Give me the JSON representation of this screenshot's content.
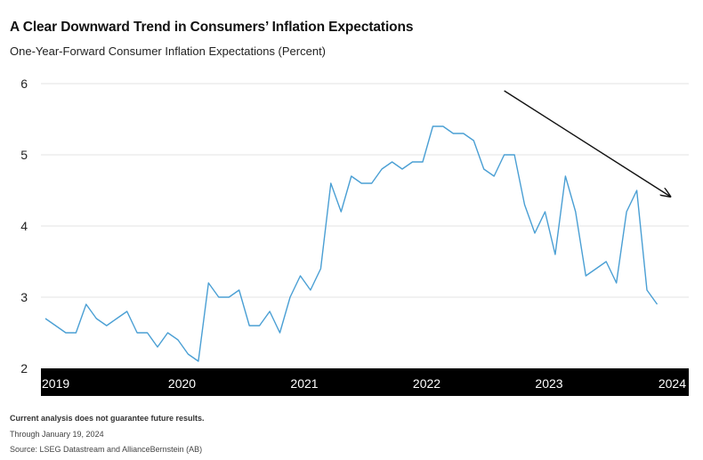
{
  "chart_data": {
    "type": "line",
    "title": "A Clear Downward Trend in Consumers’ Inflation Expectations",
    "subtitle": "One-Year-Forward Consumer Inflation Expectations (Percent)",
    "xlabel": "",
    "ylabel": "",
    "ylim": [
      2,
      6
    ],
    "yticks": [
      "2",
      "3",
      "4",
      "5",
      "6"
    ],
    "xticks": [
      "2019",
      "2020",
      "2021",
      "2022",
      "2023",
      "2024"
    ],
    "grid": true,
    "x": [
      "2019-01",
      "2019-02",
      "2019-03",
      "2019-04",
      "2019-05",
      "2019-06",
      "2019-07",
      "2019-08",
      "2019-09",
      "2019-10",
      "2019-11",
      "2019-12",
      "2020-01",
      "2020-02",
      "2020-03",
      "2020-04",
      "2020-05",
      "2020-06",
      "2020-07",
      "2020-08",
      "2020-09",
      "2020-10",
      "2020-11",
      "2020-12",
      "2021-01",
      "2021-02",
      "2021-03",
      "2021-04",
      "2021-05",
      "2021-06",
      "2021-07",
      "2021-08",
      "2021-09",
      "2021-10",
      "2021-11",
      "2021-12",
      "2022-01",
      "2022-02",
      "2022-03",
      "2022-04",
      "2022-05",
      "2022-06",
      "2022-07",
      "2022-08",
      "2022-09",
      "2022-10",
      "2022-11",
      "2022-12",
      "2023-01",
      "2023-02",
      "2023-03",
      "2023-04",
      "2023-05",
      "2023-06",
      "2023-07",
      "2023-08",
      "2023-09",
      "2023-10",
      "2023-11",
      "2023-12",
      "2024-01"
    ],
    "series": [
      {
        "values": [
          2.7,
          2.6,
          2.5,
          2.5,
          2.9,
          2.7,
          2.6,
          2.7,
          2.8,
          2.5,
          2.5,
          2.3,
          2.5,
          2.4,
          2.2,
          2.1,
          3.2,
          3.0,
          3.0,
          3.1,
          2.6,
          2.6,
          2.8,
          2.5,
          3.0,
          3.3,
          3.1,
          3.4,
          4.6,
          4.2,
          4.7,
          4.6,
          4.6,
          4.8,
          4.9,
          4.8,
          4.9,
          4.9,
          5.4,
          5.4,
          5.3,
          5.3,
          5.2,
          4.8,
          4.7,
          5.0,
          5.0,
          4.3,
          3.9,
          4.2,
          3.6,
          4.7,
          4.2,
          3.3,
          3.4,
          3.5,
          3.2,
          4.2,
          4.5,
          3.1,
          2.9
        ],
        "color": "#4a9fd4"
      }
    ],
    "annotation": {
      "type": "downward-trend-arrow",
      "from": [
        "2022-10",
        5.9
      ],
      "to": [
        "2024-01",
        4.42
      ],
      "color": "#111111"
    }
  },
  "footer": {
    "disclaimer": "Current analysis does not guarantee future results.",
    "through": "Through January 19, 2024",
    "source": "Source: LSEG Datastream and AllianceBernstein (AB)"
  },
  "colors": {
    "line": "#4a9fd4",
    "axis_band": "#000000",
    "grid": "#e3e3e3"
  }
}
